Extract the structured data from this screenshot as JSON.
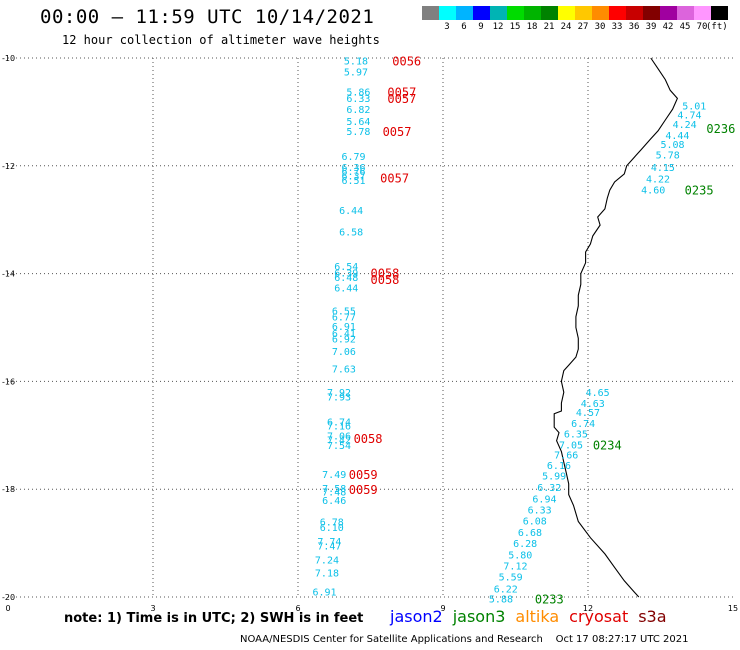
{
  "title": "00:00 – 11:59 UTC 10/14/2021",
  "subtitle": "12 hour collection of altimeter wave heights",
  "legend": {
    "unit": "(ft)",
    "items": [
      {
        "label": "",
        "color": "#808080"
      },
      {
        "label": "3",
        "color": "#00ffff"
      },
      {
        "label": "6",
        "color": "#00b4ff"
      },
      {
        "label": "9",
        "color": "#0000ff"
      },
      {
        "label": "12",
        "color": "#00b4b4"
      },
      {
        "label": "15",
        "color": "#00dc00"
      },
      {
        "label": "18",
        "color": "#00b400"
      },
      {
        "label": "21",
        "color": "#008200"
      },
      {
        "label": "24",
        "color": "#ffff00"
      },
      {
        "label": "27",
        "color": "#ffc800"
      },
      {
        "label": "30",
        "color": "#ff8c00"
      },
      {
        "label": "33",
        "color": "#ff0000"
      },
      {
        "label": "36",
        "color": "#c80000"
      },
      {
        "label": "39",
        "color": "#820000"
      },
      {
        "label": "42",
        "color": "#a000a0"
      },
      {
        "label": "45",
        "color": "#dc64dc"
      },
      {
        "label": "70",
        "color": "#ff96ff"
      },
      {
        "label": "",
        "color": "#000000"
      }
    ]
  },
  "axes": {
    "x_ticks": [
      "0",
      "3",
      "6",
      "9",
      "12",
      "15"
    ],
    "y_ticks": [
      "-10",
      "-12",
      "-14",
      "-16",
      "-18",
      "-20"
    ]
  },
  "wave_color": "#0cc0e8",
  "wave_heights": [
    {
      "v": "5.18",
      "x": 6.95,
      "y": -10.05
    },
    {
      "v": "5.97",
      "x": 6.95,
      "y": -10.25
    },
    {
      "v": "5.86",
      "x": 7.0,
      "y": -10.62
    },
    {
      "v": "6.33",
      "x": 7.0,
      "y": -10.74
    },
    {
      "v": "6.82",
      "x": 7.0,
      "y": -10.95
    },
    {
      "v": "5.64",
      "x": 7.0,
      "y": -11.17
    },
    {
      "v": "5.78",
      "x": 7.0,
      "y": -11.35
    },
    {
      "v": "6.79",
      "x": 6.9,
      "y": -11.82
    },
    {
      "v": "6.36",
      "x": 6.9,
      "y": -12.02
    },
    {
      "v": "6.76",
      "x": 6.9,
      "y": -12.1
    },
    {
      "v": "6.37",
      "x": 6.9,
      "y": -12.18
    },
    {
      "v": "6.51",
      "x": 6.9,
      "y": -12.26
    },
    {
      "v": "6.44",
      "x": 6.85,
      "y": -12.82
    },
    {
      "v": "6.58",
      "x": 6.85,
      "y": -13.22
    },
    {
      "v": "6.54",
      "x": 6.75,
      "y": -13.86
    },
    {
      "v": "6.39",
      "x": 6.75,
      "y": -13.98
    },
    {
      "v": "6.48",
      "x": 6.75,
      "y": -14.06
    },
    {
      "v": "6.44",
      "x": 6.75,
      "y": -14.26
    },
    {
      "v": "6.55",
      "x": 6.7,
      "y": -14.68
    },
    {
      "v": "6.77",
      "x": 6.7,
      "y": -14.8
    },
    {
      "v": "6.91",
      "x": 6.7,
      "y": -14.97
    },
    {
      "v": "6.41",
      "x": 6.7,
      "y": -15.1
    },
    {
      "v": "6.92",
      "x": 6.7,
      "y": -15.2
    },
    {
      "v": "7.06",
      "x": 6.7,
      "y": -15.44
    },
    {
      "v": "7.63",
      "x": 6.7,
      "y": -15.76
    },
    {
      "v": "7.92",
      "x": 6.6,
      "y": -16.2
    },
    {
      "v": "7.93",
      "x": 6.6,
      "y": -16.28
    },
    {
      "v": "6.74",
      "x": 6.6,
      "y": -16.74
    },
    {
      "v": "7.16",
      "x": 6.6,
      "y": -16.82
    },
    {
      "v": "7.06",
      "x": 6.6,
      "y": -17.0
    },
    {
      "v": "7.42",
      "x": 6.6,
      "y": -17.08
    },
    {
      "v": "7.54",
      "x": 6.6,
      "y": -17.18
    },
    {
      "v": "7.49",
      "x": 6.5,
      "y": -17.72
    },
    {
      "v": "7.58",
      "x": 6.5,
      "y": -17.98
    },
    {
      "v": "7.48",
      "x": 6.5,
      "y": -18.04
    },
    {
      "v": "6.46",
      "x": 6.5,
      "y": -18.2
    },
    {
      "v": "6.78",
      "x": 6.45,
      "y": -18.6
    },
    {
      "v": "6.10",
      "x": 6.45,
      "y": -18.7
    },
    {
      "v": "7.74",
      "x": 6.4,
      "y": -18.96
    },
    {
      "v": "7.47",
      "x": 6.4,
      "y": -19.04
    },
    {
      "v": "7.24",
      "x": 6.35,
      "y": -19.3
    },
    {
      "v": "7.18",
      "x": 6.35,
      "y": -19.55
    },
    {
      "v": "6.91",
      "x": 6.3,
      "y": -19.9
    },
    {
      "v": "5.01",
      "x": 13.95,
      "y": -10.88
    },
    {
      "v": "4.74",
      "x": 13.85,
      "y": -11.05
    },
    {
      "v": "4.24",
      "x": 13.75,
      "y": -11.22
    },
    {
      "v": "4.44",
      "x": 13.6,
      "y": -11.43
    },
    {
      "v": "5.08",
      "x": 13.5,
      "y": -11.6
    },
    {
      "v": "5.78",
      "x": 13.4,
      "y": -11.79
    },
    {
      "v": "4.15",
      "x": 13.3,
      "y": -12.02
    },
    {
      "v": "4.22",
      "x": 13.2,
      "y": -12.24
    },
    {
      "v": "4.60",
      "x": 13.1,
      "y": -12.44
    },
    {
      "v": "4.65",
      "x": 11.95,
      "y": -16.2
    },
    {
      "v": "4.63",
      "x": 11.85,
      "y": -16.4
    },
    {
      "v": "4.57",
      "x": 11.75,
      "y": -16.57
    },
    {
      "v": "6.74",
      "x": 11.65,
      "y": -16.77
    },
    {
      "v": "6.35",
      "x": 11.5,
      "y": -16.97
    },
    {
      "v": "7.05",
      "x": 11.4,
      "y": -17.17
    },
    {
      "v": "7.66",
      "x": 11.3,
      "y": -17.36
    },
    {
      "v": "6.16",
      "x": 11.15,
      "y": -17.55
    },
    {
      "v": "5.99",
      "x": 11.05,
      "y": -17.75
    },
    {
      "v": "6.32",
      "x": 10.95,
      "y": -17.96
    },
    {
      "v": "6.94",
      "x": 10.85,
      "y": -18.17
    },
    {
      "v": "6.33",
      "x": 10.75,
      "y": -18.38
    },
    {
      "v": "6.08",
      "x": 10.65,
      "y": -18.58
    },
    {
      "v": "6.68",
      "x": 10.55,
      "y": -18.79
    },
    {
      "v": "6.28",
      "x": 10.45,
      "y": -19.0
    },
    {
      "v": "5.80",
      "x": 10.35,
      "y": -19.21
    },
    {
      "v": "7.12",
      "x": 10.25,
      "y": -19.42
    },
    {
      "v": "5.59",
      "x": 10.15,
      "y": -19.62
    },
    {
      "v": "6.22",
      "x": 10.05,
      "y": -19.84
    },
    {
      "v": "5.88",
      "x": 9.95,
      "y": -20.03
    }
  ],
  "pass_labels": [
    {
      "text": "0056",
      "x": 7.95,
      "y": -10.05,
      "color": "#e00000"
    },
    {
      "text": "0057",
      "x": 7.85,
      "y": -10.62,
      "color": "#e00000"
    },
    {
      "text": "0057",
      "x": 7.85,
      "y": -10.74,
      "color": "#e00000"
    },
    {
      "text": "0057",
      "x": 7.75,
      "y": -11.35,
      "color": "#e00000"
    },
    {
      "text": "0057",
      "x": 7.7,
      "y": -12.22,
      "color": "#e00000"
    },
    {
      "text": "0058",
      "x": 7.5,
      "y": -13.98,
      "color": "#e00000"
    },
    {
      "text": "0058",
      "x": 7.5,
      "y": -14.1,
      "color": "#e00000"
    },
    {
      "text": "0058",
      "x": 7.15,
      "y": -17.05,
      "color": "#e00000"
    },
    {
      "text": "0059",
      "x": 7.05,
      "y": -17.72,
      "color": "#e00000"
    },
    {
      "text": "0059",
      "x": 7.05,
      "y": -18.0,
      "color": "#e00000"
    },
    {
      "text": "0236",
      "x": 14.45,
      "y": -11.3,
      "color": "#008200"
    },
    {
      "text": "0235",
      "x": 14.0,
      "y": -12.44,
      "color": "#008200"
    },
    {
      "text": "0234",
      "x": 12.1,
      "y": -17.17,
      "color": "#008200"
    },
    {
      "text": "0233",
      "x": 10.9,
      "y": -20.03,
      "color": "#008200"
    }
  ],
  "coastline": [
    [
      13.3,
      -10.0
    ],
    [
      13.45,
      -10.2
    ],
    [
      13.6,
      -10.4
    ],
    [
      13.7,
      -10.6
    ],
    [
      13.85,
      -10.75
    ],
    [
      13.75,
      -10.95
    ],
    [
      13.6,
      -11.15
    ],
    [
      13.45,
      -11.35
    ],
    [
      13.3,
      -11.5
    ],
    [
      13.1,
      -11.7
    ],
    [
      12.95,
      -11.85
    ],
    [
      12.8,
      -12.0
    ],
    [
      12.75,
      -12.15
    ],
    [
      12.55,
      -12.3
    ],
    [
      12.45,
      -12.45
    ],
    [
      12.4,
      -12.6
    ],
    [
      12.35,
      -12.8
    ],
    [
      12.2,
      -12.95
    ],
    [
      12.25,
      -13.1
    ],
    [
      12.1,
      -13.3
    ],
    [
      12.05,
      -13.45
    ],
    [
      11.95,
      -13.6
    ],
    [
      11.95,
      -13.8
    ],
    [
      11.85,
      -14.0
    ],
    [
      11.85,
      -14.2
    ],
    [
      11.8,
      -14.4
    ],
    [
      11.8,
      -14.6
    ],
    [
      11.75,
      -14.8
    ],
    [
      11.75,
      -15.0
    ],
    [
      11.8,
      -15.2
    ],
    [
      11.8,
      -15.4
    ],
    [
      11.75,
      -15.55
    ],
    [
      11.6,
      -15.7
    ],
    [
      11.5,
      -15.8
    ],
    [
      11.45,
      -16.0
    ],
    [
      11.5,
      -16.2
    ],
    [
      11.45,
      -16.4
    ],
    [
      11.45,
      -16.55
    ],
    [
      11.3,
      -16.6
    ],
    [
      11.3,
      -16.85
    ],
    [
      11.4,
      -16.95
    ],
    [
      11.35,
      -17.1
    ],
    [
      11.45,
      -17.3
    ],
    [
      11.5,
      -17.5
    ],
    [
      11.55,
      -17.7
    ],
    [
      11.6,
      -17.9
    ],
    [
      11.6,
      -18.1
    ],
    [
      11.7,
      -18.3
    ],
    [
      11.8,
      -18.6
    ],
    [
      12.05,
      -18.9
    ],
    [
      12.35,
      -19.2
    ],
    [
      12.55,
      -19.45
    ],
    [
      12.75,
      -19.7
    ],
    [
      12.95,
      -19.9
    ],
    [
      13.05,
      -20.0
    ]
  ],
  "note": "note: 1) Time is in UTC; 2) SWH is in feet",
  "missions": [
    {
      "name": "jason2",
      "color": "#0000ff"
    },
    {
      "name": "jason3",
      "color": "#008200"
    },
    {
      "name": "altika",
      "color": "#ff8c00"
    },
    {
      "name": "cryosat",
      "color": "#e00000"
    },
    {
      "name": "s3a",
      "color": "#820000"
    }
  ],
  "footer": {
    "credit": "NOAA/NESDIS Center for Satellite Applications and Research",
    "timestamp": "Oct 17 08:27:17 UTC 2021"
  }
}
